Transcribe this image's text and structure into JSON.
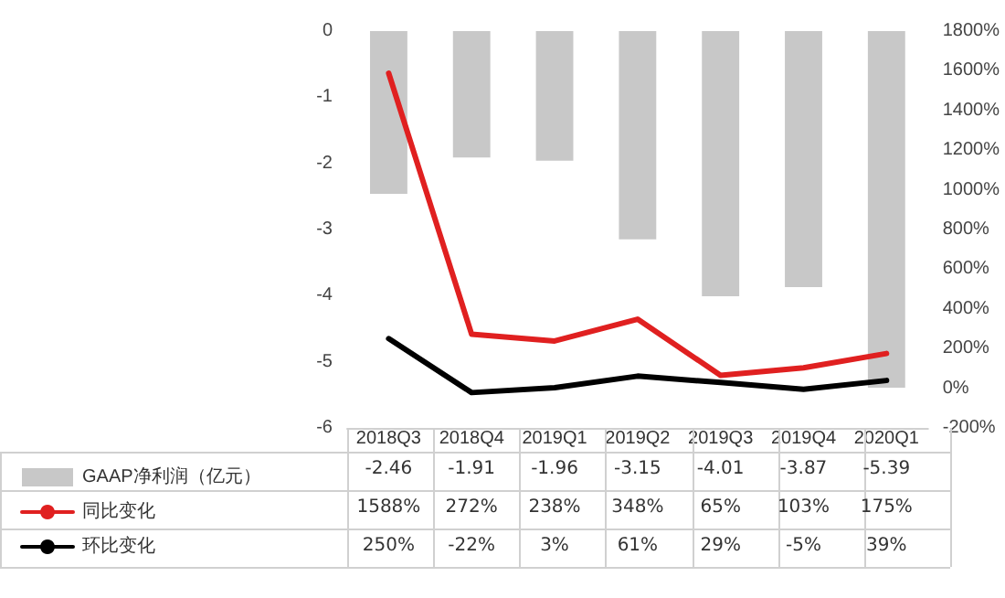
{
  "chart_data": {
    "type": "bar",
    "categories": [
      "2018Q3",
      "2018Q4",
      "2019Q1",
      "2019Q2",
      "2019Q3",
      "2019Q4",
      "2020Q1"
    ],
    "series": [
      {
        "name": "GAAP净利润（亿元）",
        "color": "#c8c8c8",
        "values": [
          -2.46,
          -1.91,
          -1.96,
          -3.15,
          -4.01,
          -3.87,
          -5.39
        ],
        "value_labels": [
          "-2.46",
          "-1.91",
          "-1.96",
          "-3.15",
          "-4.01",
          "-3.87",
          "-5.39"
        ]
      },
      {
        "name": "同比变化",
        "type": "line",
        "axis": "y2",
        "color": "#e02020",
        "values": [
          1588,
          272,
          238,
          348,
          65,
          103,
          175
        ],
        "value_labels": [
          "1588%",
          "272%",
          "238%",
          "348%",
          "65%",
          "103%",
          "175%"
        ]
      },
      {
        "name": "环比变化",
        "type": "line",
        "axis": "y2",
        "color": "#000000",
        "values": [
          250,
          -22,
          3,
          61,
          29,
          -5,
          39
        ],
        "value_labels": [
          "250%",
          "-22%",
          "3%",
          "61%",
          "29%",
          "-5%",
          "39%"
        ]
      }
    ],
    "ylim": [
      -6,
      0
    ],
    "yticks": [
      -6,
      -5,
      -4,
      -3,
      -2,
      -1,
      0
    ],
    "y2lim": [
      -200,
      1800
    ],
    "y2ticks": [
      {
        "value": -200,
        "label": "-200%"
      },
      {
        "value": 0,
        "label": "0%"
      },
      {
        "value": 200,
        "label": "200%"
      },
      {
        "value": 400,
        "label": "400%"
      },
      {
        "value": 600,
        "label": "600%"
      },
      {
        "value": 800,
        "label": "800%"
      },
      {
        "value": 1000,
        "label": "1000%"
      },
      {
        "value": 1200,
        "label": "1200%"
      },
      {
        "value": 1400,
        "label": "1400%"
      },
      {
        "value": 1600,
        "label": "1600%"
      },
      {
        "value": 1800,
        "label": "1800%"
      }
    ],
    "grid": false,
    "legend": "bottom left",
    "marker": "none",
    "line_style": "solid"
  }
}
